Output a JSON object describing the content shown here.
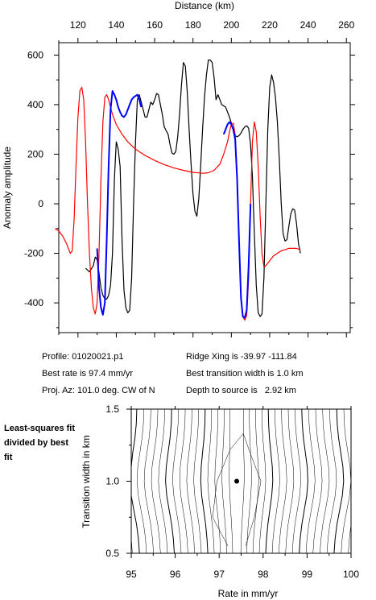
{
  "chart_data": [
    {
      "type": "line",
      "title": "",
      "xlabel": "Distance (km)",
      "ylabel": "Anomaly amplitude",
      "xlim": [
        110,
        262
      ],
      "ylim": [
        -520,
        650
      ],
      "x_ticks": [
        120,
        140,
        160,
        180,
        200,
        220,
        240,
        260
      ],
      "y_ticks": [
        -400,
        -200,
        0,
        200,
        400,
        600
      ],
      "x_axis_position": "top",
      "grid": false,
      "series": [
        {
          "color": "#000000",
          "points": [
            [
              124,
              -260
            ],
            [
              126,
              -275
            ],
            [
              128,
              -250
            ],
            [
              129,
              -215
            ],
            [
              130,
              -225
            ],
            [
              131,
              -280
            ],
            [
              132,
              -340
            ],
            [
              133,
              -370
            ],
            [
              134,
              -383
            ],
            [
              135,
              -385
            ],
            [
              136,
              -370
            ],
            [
              137,
              -330
            ],
            [
              138,
              -200
            ],
            [
              139,
              100
            ],
            [
              140,
              250
            ],
            [
              141,
              220
            ],
            [
              142,
              150
            ],
            [
              143,
              -150
            ],
            [
              144,
              -350
            ],
            [
              145,
              -420
            ],
            [
              146,
              -440
            ],
            [
              147,
              -430
            ],
            [
              148,
              -300
            ],
            [
              149,
              0
            ],
            [
              150,
              250
            ],
            [
              151,
              420
            ],
            [
              152,
              440
            ],
            [
              153,
              410
            ],
            [
              154,
              380
            ],
            [
              155,
              350
            ],
            [
              156,
              350
            ],
            [
              157,
              380
            ],
            [
              158,
              410
            ],
            [
              159,
              400
            ],
            [
              160,
              420
            ],
            [
              161,
              445
            ],
            [
              162,
              440
            ],
            [
              163,
              400
            ],
            [
              164,
              360
            ],
            [
              165,
              310
            ],
            [
              167,
              280
            ],
            [
              168,
              240
            ],
            [
              169,
              205
            ],
            [
              170,
              200
            ],
            [
              171,
              210
            ],
            [
              172,
              270
            ],
            [
              173,
              360
            ],
            [
              174,
              480
            ],
            [
              175,
              570
            ],
            [
              176,
              555
            ],
            [
              177,
              450
            ],
            [
              178,
              300
            ],
            [
              179,
              160
            ],
            [
              180,
              40
            ],
            [
              181,
              -30
            ],
            [
              182,
              -50
            ],
            [
              183,
              20
            ],
            [
              184,
              150
            ],
            [
              185,
              300
            ],
            [
              186,
              430
            ],
            [
              187,
              520
            ],
            [
              188,
              580
            ],
            [
              189,
              580
            ],
            [
              190,
              570
            ],
            [
              191,
              510
            ],
            [
              192,
              420
            ],
            [
              193,
              440
            ],
            [
              194,
              420
            ],
            [
              195,
              400
            ],
            [
              197,
              390
            ],
            [
              199,
              350
            ],
            [
              201,
              300
            ],
            [
              202,
              275
            ],
            [
              203,
              270
            ],
            [
              204,
              275
            ],
            [
              205,
              285
            ],
            [
              206,
              300
            ],
            [
              207,
              310
            ],
            [
              208,
              315
            ],
            [
              209,
              305
            ],
            [
              210,
              240
            ],
            [
              211,
              110
            ],
            [
              212,
              -120
            ],
            [
              213,
              -330
            ],
            [
              214,
              -440
            ],
            [
              215,
              -455
            ],
            [
              216,
              -445
            ],
            [
              217,
              -300
            ],
            [
              218,
              0
            ],
            [
              219,
              300
            ],
            [
              220,
              470
            ],
            [
              221,
              520
            ],
            [
              222,
              490
            ],
            [
              223,
              430
            ],
            [
              224,
              330
            ],
            [
              225,
              180
            ],
            [
              226,
              0
            ],
            [
              227,
              -120
            ],
            [
              228,
              -150
            ],
            [
              229,
              -145
            ],
            [
              230,
              -90
            ],
            [
              231,
              -40
            ],
            [
              232,
              -20
            ],
            [
              233,
              -25
            ],
            [
              234,
              -80
            ],
            [
              235,
              -160
            ],
            [
              236,
              -200
            ]
          ]
        },
        {
          "color": "#ff0000",
          "points": [
            [
              108,
              -100
            ],
            [
              110,
              -110
            ],
            [
              112,
              -130
            ],
            [
              114,
              -160
            ],
            [
              116,
              -200
            ],
            [
              117,
              -190
            ],
            [
              118,
              -60
            ],
            [
              119,
              150
            ],
            [
              120,
              350
            ],
            [
              121,
              455
            ],
            [
              122,
              470
            ],
            [
              123,
              420
            ],
            [
              124,
              250
            ],
            [
              125,
              0
            ],
            [
              126,
              -200
            ],
            [
              127,
              -340
            ],
            [
              128,
              -420
            ],
            [
              129,
              -445
            ],
            [
              130,
              -400
            ],
            [
              131,
              -200
            ],
            [
              132,
              100
            ],
            [
              133,
              330
            ],
            [
              134,
              430
            ],
            [
              135,
              440
            ],
            [
              136,
              420
            ],
            [
              137,
              390
            ],
            [
              138,
              360
            ],
            [
              140,
              320
            ],
            [
              143,
              280
            ],
            [
              146,
              250
            ],
            [
              150,
              220
            ],
            [
              155,
              195
            ],
            [
              160,
              175
            ],
            [
              165,
              158
            ],
            [
              170,
              145
            ],
            [
              175,
              135
            ],
            [
              180,
              127
            ],
            [
              185,
              123
            ],
            [
              188,
              125
            ],
            [
              191,
              135
            ],
            [
              194,
              160
            ],
            [
              196,
              200
            ],
            [
              198,
              250
            ],
            [
              199,
              290
            ],
            [
              200,
              320
            ],
            [
              201,
              325
            ],
            [
              202,
              280
            ],
            [
              203,
              120
            ],
            [
              204,
              -150
            ],
            [
              205,
              -370
            ],
            [
              206,
              -455
            ],
            [
              207,
              -470
            ],
            [
              208,
              -450
            ],
            [
              209,
              -300
            ],
            [
              210,
              0
            ],
            [
              211,
              250
            ],
            [
              212,
              330
            ],
            [
              213,
              290
            ],
            [
              214,
              150
            ],
            [
              215,
              -50
            ],
            [
              216,
              -200
            ],
            [
              217,
              -255
            ],
            [
              218,
              -250
            ],
            [
              220,
              -230
            ],
            [
              222,
              -210
            ],
            [
              224,
              -200
            ],
            [
              226,
              -190
            ],
            [
              228,
              -185
            ],
            [
              230,
              -180
            ],
            [
              232,
              -180
            ],
            [
              234,
              -180
            ],
            [
              236,
              -185
            ]
          ]
        },
        {
          "color": "#0000ff",
          "points": [
            [
              130,
              -180
            ],
            [
              130.5,
              -250
            ],
            [
              131,
              -340
            ],
            [
              132,
              -420
            ],
            [
              133,
              -448
            ],
            [
              134,
              -400
            ],
            [
              135,
              -150
            ],
            [
              136,
              150
            ],
            [
              137,
              380
            ],
            [
              138,
              455
            ],
            [
              139,
              440
            ],
            [
              140,
              420
            ],
            [
              141,
              390
            ],
            [
              142,
              370
            ],
            [
              143,
              355
            ],
            [
              144,
              350
            ],
            [
              145,
              360
            ],
            [
              146,
              380
            ],
            [
              147,
              400
            ],
            [
              148,
              420
            ],
            [
              149,
              430
            ],
            [
              150,
              435
            ],
            [
              151,
              440
            ],
            [
              152,
              420
            ],
            [
              153,
              390
            ]
          ]
        },
        {
          "color": "#0000ff",
          "points": [
            [
              196,
              280
            ],
            [
              197,
              300
            ],
            [
              198,
              320
            ],
            [
              199,
              330
            ],
            [
              200,
              320
            ],
            [
              201,
              300
            ],
            [
              202,
              260
            ],
            [
              203,
              100
            ],
            [
              204,
              -150
            ],
            [
              205,
              -380
            ],
            [
              206,
              -455
            ],
            [
              207,
              -460
            ],
            [
              208,
              -430
            ],
            [
              209,
              -250
            ],
            [
              210,
              0
            ]
          ]
        }
      ]
    },
    {
      "type": "contour",
      "title": "",
      "xlabel": "Rate in mm/yr",
      "ylabel": "Transition width in km",
      "xlim": [
        95,
        100
      ],
      "ylim": [
        0.5,
        1.5
      ],
      "x_ticks": [
        95,
        96,
        97,
        98,
        99,
        100
      ],
      "y_ticks": [
        0.5,
        1.0,
        1.5
      ],
      "minimum": {
        "x": 97.4,
        "y": 1.0
      }
    }
  ],
  "info": {
    "profile": "Profile: 01020021.p1",
    "best_rate": "Best rate is 97.4 mm/yr",
    "proj_az": "Proj. Az: 101.0 deg. CW of N",
    "ridge_xing": "Ridge Xing is -39.97 -111.84",
    "best_width": "Best transition width is 1.0 km",
    "depth": "Depth to source is   2.92 km"
  },
  "side_label": "Least-squares fit divided by best fit"
}
